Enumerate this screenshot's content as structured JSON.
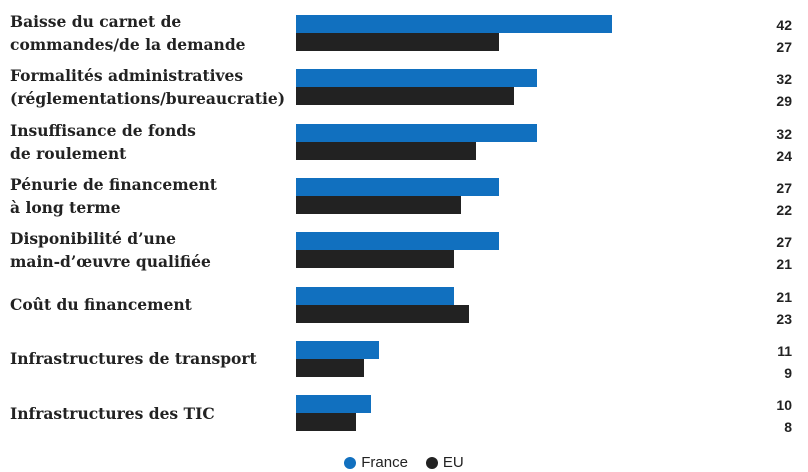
{
  "chart_data": {
    "type": "bar",
    "orientation": "horizontal",
    "categories": [
      "Baisse du carnet de\ncommandes/de la demande",
      "Formalités administratives\n(réglementations/bureaucratie)",
      "Insuffisance de fonds\nde roulement",
      "Pénurie de financement\nà long terme",
      "Disponibilité d’une\nmain-d’œuvre qualifiée",
      "Coût du financement",
      "Infrastructures de transport",
      "Infrastructures des TIC"
    ],
    "series": [
      {
        "name": "France",
        "color": "#1170bf",
        "values": [
          42,
          32,
          32,
          27,
          27,
          21,
          11,
          10
        ]
      },
      {
        "name": "EU",
        "color": "#222222",
        "values": [
          27,
          29,
          24,
          22,
          21,
          23,
          9,
          8
        ]
      }
    ],
    "legend": "bottom"
  }
}
